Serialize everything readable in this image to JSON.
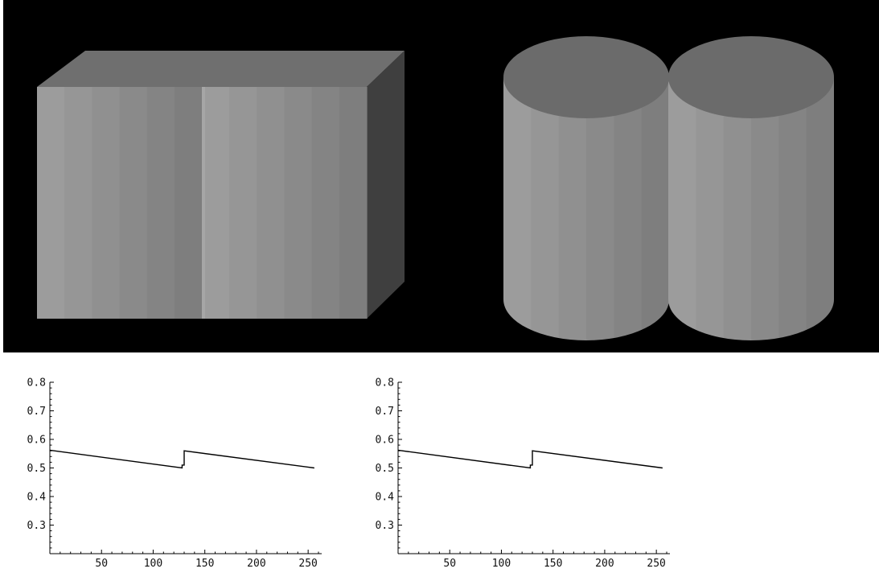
{
  "scene": {
    "background_color": "#000000",
    "objects": [
      "box",
      "cylinder-pair"
    ],
    "colors": {
      "box_top": "#6f6f6f",
      "box_side": "#3f3f3f",
      "cylinder_top": "#6b6b6b",
      "front_stripes": [
        "#9c9c9c",
        "#969696",
        "#909090",
        "#8a8a8a",
        "#848484",
        "#7e7e7e"
      ]
    }
  },
  "chart_data": [
    {
      "type": "line",
      "title": "",
      "xlabel": "",
      "ylabel": "",
      "xlim": [
        0,
        260
      ],
      "ylim": [
        0.2,
        0.8
      ],
      "x_ticks": [
        50,
        100,
        150,
        200,
        250
      ],
      "y_ticks": [
        0.3,
        0.4,
        0.5,
        0.6,
        0.7,
        0.8
      ],
      "x_tick_labels": [
        "50",
        "100",
        "150",
        "200",
        "250"
      ],
      "y_tick_labels": [
        "0.3",
        "0.4",
        "0.5",
        "0.6",
        "0.7",
        "0.8"
      ],
      "grid": false,
      "line_color": "#000000",
      "series": [
        {
          "x": [
            0,
            128,
            128,
            130,
            130,
            256
          ],
          "y": [
            0.562,
            0.5,
            0.51,
            0.51,
            0.56,
            0.5
          ]
        }
      ]
    },
    {
      "type": "line",
      "title": "",
      "xlabel": "",
      "ylabel": "",
      "xlim": [
        0,
        260
      ],
      "ylim": [
        0.2,
        0.8
      ],
      "x_ticks": [
        50,
        100,
        150,
        200,
        250
      ],
      "y_ticks": [
        0.3,
        0.4,
        0.5,
        0.6,
        0.7,
        0.8
      ],
      "x_tick_labels": [
        "50",
        "100",
        "150",
        "200",
        "250"
      ],
      "y_tick_labels": [
        "0.3",
        "0.4",
        "0.5",
        "0.6",
        "0.7",
        "0.8"
      ],
      "grid": false,
      "line_color": "#000000",
      "series": [
        {
          "x": [
            0,
            128,
            128,
            130,
            130,
            256
          ],
          "y": [
            0.562,
            0.5,
            0.51,
            0.51,
            0.56,
            0.5
          ]
        }
      ]
    }
  ]
}
